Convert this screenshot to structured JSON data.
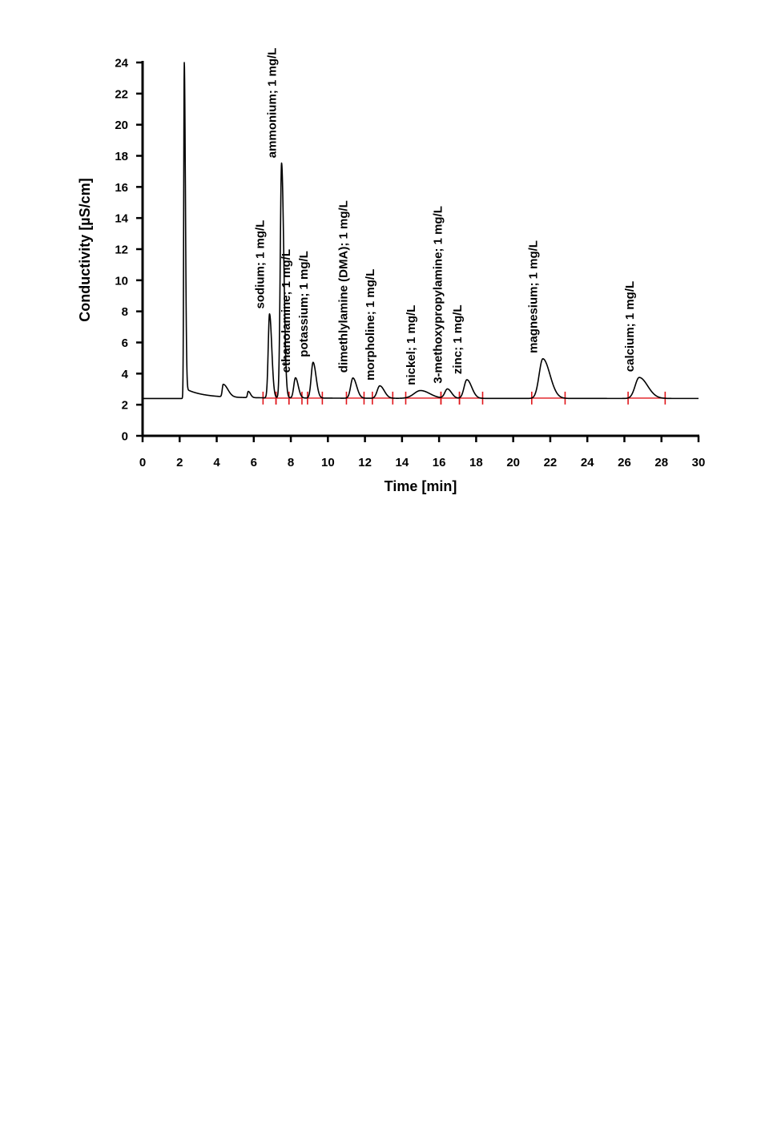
{
  "chart_data": {
    "type": "line",
    "xlabel": "Time [min]",
    "ylabel": "Conductivity [µS/cm]",
    "xlim": [
      0,
      30
    ],
    "ylim": [
      0,
      24
    ],
    "xticks": [
      0,
      2,
      4,
      6,
      8,
      10,
      12,
      14,
      16,
      18,
      20,
      22,
      24,
      26,
      28,
      30
    ],
    "yticks": [
      0,
      2,
      4,
      6,
      8,
      10,
      12,
      14,
      16,
      18,
      20,
      22,
      24
    ],
    "grid": false,
    "baseline": 2.4,
    "trace_color": "#000000",
    "integration_color": "#e0161b",
    "system_peaks": [
      {
        "t": 2.25,
        "height": 24,
        "width_left": 0.03,
        "width_right": 0.06
      },
      {
        "t": 4.35,
        "height": 3.2,
        "width_left": 0.05,
        "width_right": 0.25
      },
      {
        "t": 5.7,
        "height": 2.8,
        "width_left": 0.04,
        "width_right": 0.12
      }
    ],
    "peaks": [
      {
        "label": "sodium; 1 mg/L",
        "t": 6.85,
        "height": 7.8,
        "width_left": 0.07,
        "width_right": 0.12,
        "int_start": 6.5,
        "int_end": 7.2
      },
      {
        "label": "ammonium; 1 mg/L",
        "t": 7.5,
        "height": 17.5,
        "width_left": 0.07,
        "width_right": 0.12,
        "int_start": 7.2,
        "int_end": 7.9
      },
      {
        "label": "ethanolamine; 1 mg/L",
        "t": 8.25,
        "height": 3.7,
        "width_left": 0.09,
        "width_right": 0.15,
        "int_start": 7.9,
        "int_end": 8.6
      },
      {
        "label": "potassium; 1 mg/L",
        "t": 9.2,
        "height": 4.7,
        "width_left": 0.1,
        "width_right": 0.16,
        "int_start": 8.9,
        "int_end": 9.7
      },
      {
        "label": "dimethlylamine (DMA); 1 mg/L",
        "t": 11.35,
        "height": 3.7,
        "width_left": 0.12,
        "width_right": 0.2,
        "int_start": 11.0,
        "int_end": 11.95
      },
      {
        "label": "morpholine; 1 mg/L",
        "t": 12.8,
        "height": 3.2,
        "width_left": 0.14,
        "width_right": 0.24,
        "int_start": 12.4,
        "int_end": 13.5
      },
      {
        "label": "nickel; 1 mg/L",
        "t": 15.0,
        "height": 2.9,
        "width_left": 0.35,
        "width_right": 0.5,
        "int_start": 14.2,
        "int_end": 16.1
      },
      {
        "label": "3-methoxypropylamine; 1 mg/L",
        "t": 16.45,
        "height": 3.0,
        "width_left": 0.14,
        "width_right": 0.22,
        "int_start": 16.1,
        "int_end": 17.1
      },
      {
        "label": "zinc; 1 mg/L",
        "t": 17.5,
        "height": 3.6,
        "width_left": 0.15,
        "width_right": 0.26,
        "int_start": 17.1,
        "int_end": 18.35
      },
      {
        "label": "magnesium; 1 mg/L",
        "t": 21.6,
        "height": 4.95,
        "width_left": 0.2,
        "width_right": 0.38,
        "int_start": 21.0,
        "int_end": 22.8
      },
      {
        "label": "calcium; 1 mg/L",
        "t": 26.8,
        "height": 3.75,
        "width_left": 0.22,
        "width_right": 0.45,
        "int_start": 26.2,
        "int_end": 28.2
      }
    ]
  }
}
